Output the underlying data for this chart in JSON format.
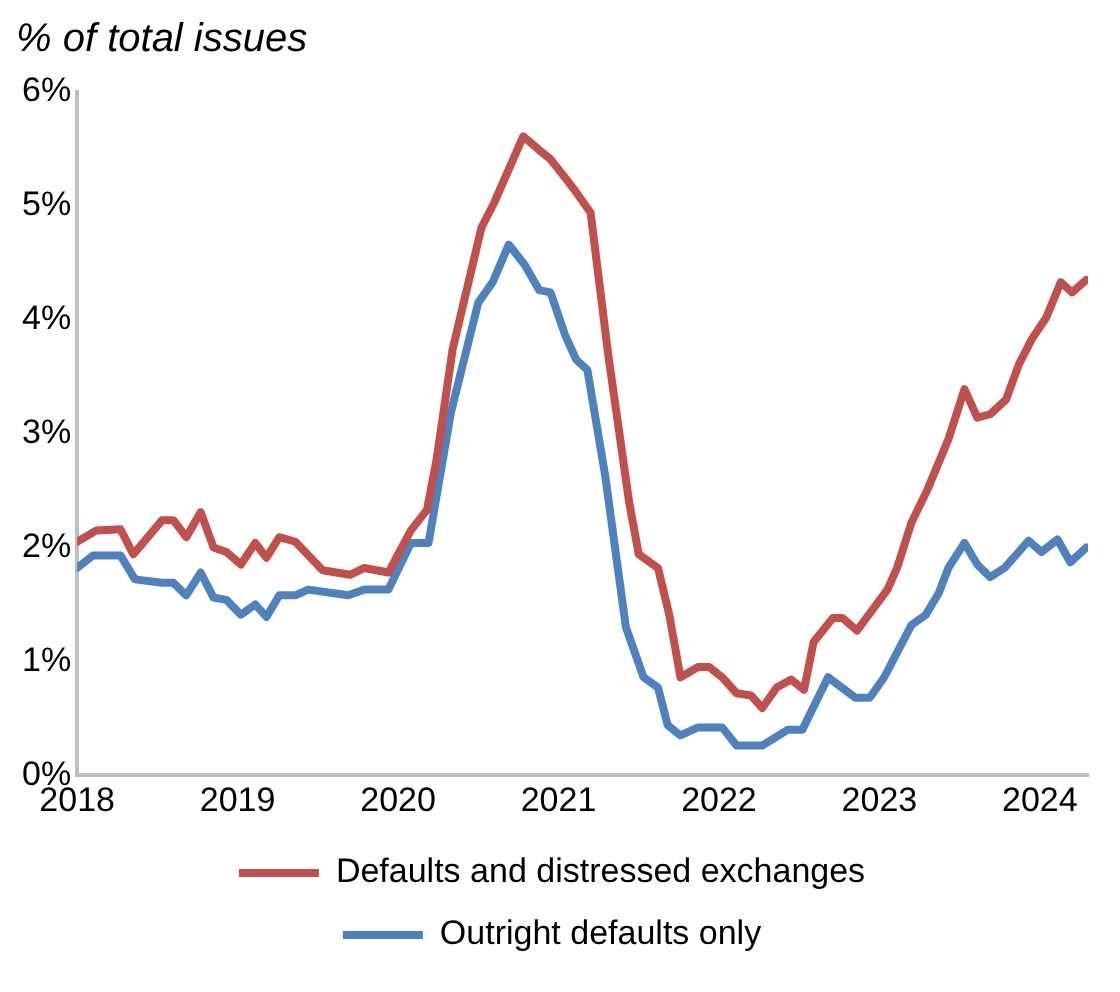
{
  "chart_data": {
    "type": "line",
    "title": "% of total issues",
    "xlim": [
      2018,
      2024.3
    ],
    "xticks": [
      2018,
      2019,
      2020,
      2021,
      2022,
      2023,
      2024
    ],
    "ylim": [
      0,
      6
    ],
    "yticks": [
      {
        "value": 0,
        "label": "0%"
      },
      {
        "value": 1,
        "label": "1%"
      },
      {
        "value": 2,
        "label": "2%"
      },
      {
        "value": 3,
        "label": "3%"
      },
      {
        "value": 4,
        "label": "4%"
      },
      {
        "value": 5,
        "label": "5%"
      },
      {
        "value": 6,
        "label": "6%"
      }
    ],
    "grid": false,
    "legend": "bottom",
    "marker": "none",
    "line_style": "solid",
    "series": [
      {
        "name": "Defaults and distressed exchanges",
        "color": "#c0504d",
        "x": [
          2018.0,
          2018.12,
          2018.27,
          2018.35,
          2018.53,
          2018.6,
          2018.68,
          2018.77,
          2018.85,
          2018.93,
          2019.02,
          2019.11,
          2019.18,
          2019.26,
          2019.36,
          2019.53,
          2019.7,
          2019.79,
          2019.94,
          2020.08,
          2020.18,
          2020.24,
          2020.34,
          2020.52,
          2020.6,
          2020.78,
          2020.88,
          2020.95,
          2021.04,
          2021.11,
          2021.2,
          2021.31,
          2021.44,
          2021.5,
          2021.62,
          2021.69,
          2021.76,
          2021.87,
          2021.94,
          2022.02,
          2022.11,
          2022.2,
          2022.27,
          2022.36,
          2022.45,
          2022.53,
          2022.59,
          2022.71,
          2022.77,
          2022.86,
          2023.05,
          2023.11,
          2023.2,
          2023.3,
          2023.43,
          2023.53,
          2023.61,
          2023.69,
          2023.79,
          2023.87,
          2023.95,
          2024.04,
          2024.13,
          2024.2,
          2024.29
        ],
        "values": [
          2.05,
          2.15,
          2.16,
          1.94,
          2.24,
          2.24,
          2.09,
          2.31,
          2.0,
          1.96,
          1.85,
          2.04,
          1.91,
          2.09,
          2.05,
          1.8,
          1.76,
          1.82,
          1.78,
          2.15,
          2.33,
          2.77,
          3.74,
          4.81,
          5.03,
          5.61,
          5.49,
          5.41,
          5.25,
          5.12,
          4.94,
          3.69,
          2.4,
          1.94,
          1.82,
          1.41,
          0.86,
          0.95,
          0.95,
          0.86,
          0.72,
          0.7,
          0.59,
          0.77,
          0.84,
          0.75,
          1.17,
          1.38,
          1.38,
          1.27,
          1.63,
          1.82,
          2.22,
          2.51,
          2.95,
          3.39,
          3.14,
          3.17,
          3.3,
          3.61,
          3.83,
          4.02,
          4.33,
          4.24,
          4.35
        ]
      },
      {
        "name": "Outright defaults only",
        "color": "#4f81bd",
        "x": [
          2018.0,
          2018.1,
          2018.27,
          2018.36,
          2018.53,
          2018.6,
          2018.68,
          2018.77,
          2018.85,
          2018.93,
          2019.02,
          2019.11,
          2019.18,
          2019.26,
          2019.36,
          2019.44,
          2019.69,
          2019.79,
          2019.94,
          2020.08,
          2020.19,
          2020.33,
          2020.5,
          2020.59,
          2020.69,
          2020.79,
          2020.88,
          2020.95,
          2021.04,
          2021.11,
          2021.18,
          2021.29,
          2021.42,
          2021.53,
          2021.62,
          2021.68,
          2021.76,
          2021.87,
          2022.02,
          2022.11,
          2022.27,
          2022.43,
          2022.52,
          2022.68,
          2022.85,
          2022.94,
          2023.03,
          2023.2,
          2023.29,
          2023.37,
          2023.43,
          2023.53,
          2023.61,
          2023.69,
          2023.78,
          2023.93,
          2024.01,
          2024.11,
          2024.19,
          2024.29
        ],
        "values": [
          1.82,
          1.93,
          1.93,
          1.72,
          1.69,
          1.69,
          1.58,
          1.78,
          1.56,
          1.54,
          1.41,
          1.5,
          1.39,
          1.58,
          1.58,
          1.63,
          1.58,
          1.63,
          1.63,
          2.04,
          2.04,
          3.19,
          4.15,
          4.33,
          4.66,
          4.48,
          4.26,
          4.24,
          3.87,
          3.65,
          3.56,
          2.64,
          1.3,
          0.86,
          0.77,
          0.44,
          0.35,
          0.42,
          0.42,
          0.26,
          0.26,
          0.4,
          0.4,
          0.86,
          0.68,
          0.68,
          0.86,
          1.32,
          1.41,
          1.6,
          1.82,
          2.04,
          1.85,
          1.74,
          1.82,
          2.06,
          1.96,
          2.07,
          1.87,
          2.0
        ]
      }
    ]
  }
}
